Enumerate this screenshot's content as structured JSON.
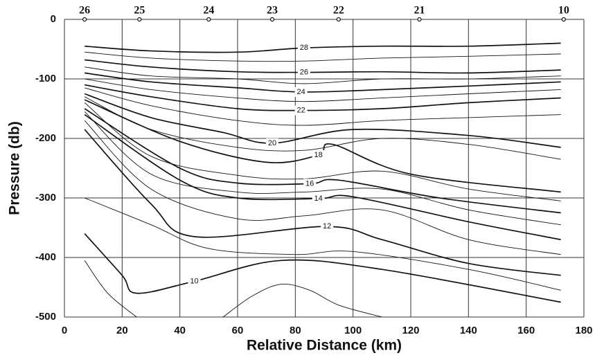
{
  "chart_data": {
    "type": "contour",
    "xlabel": "Relative Distance (km)",
    "ylabel": "Pressure (db)",
    "xlim": [
      0,
      180
    ],
    "ylim": [
      -500,
      0
    ],
    "xticks": [
      0,
      20,
      40,
      60,
      80,
      100,
      120,
      140,
      160,
      180
    ],
    "yticks": [
      0,
      -100,
      -200,
      -300,
      -400,
      -500
    ],
    "grid": true,
    "color": "#111111",
    "stations": {
      "labels": [
        "26",
        "25",
        "24",
        "23",
        "22",
        "21",
        "10"
      ],
      "x": [
        7,
        26,
        50,
        72,
        95,
        123,
        173
      ]
    },
    "contours": [
      {
        "level": 28,
        "x": [
          7,
          30,
          60,
          83,
          110,
          140,
          172
        ],
        "y": [
          -45,
          -53,
          -55,
          -48,
          -45,
          -45,
          -40
        ]
      },
      {
        "level": null,
        "x": [
          7,
          30,
          60,
          83,
          110,
          140,
          172
        ],
        "y": [
          -55,
          -65,
          -70,
          -70,
          -65,
          -62,
          -58
        ]
      },
      {
        "level": 26,
        "x": [
          7,
          30,
          60,
          83,
          110,
          140,
          172
        ],
        "y": [
          -68,
          -80,
          -88,
          -89,
          -88,
          -90,
          -85
        ]
      },
      {
        "level": null,
        "x": [
          7,
          30,
          60,
          83,
          110,
          140,
          172
        ],
        "y": [
          -80,
          -95,
          -100,
          -108,
          -100,
          -100,
          -95
        ]
      },
      {
        "level": 24,
        "x": [
          7,
          30,
          60,
          82,
          110,
          140,
          172
        ],
        "y": [
          -90,
          -105,
          -115,
          -122,
          -118,
          -112,
          -105
        ]
      },
      {
        "level": null,
        "x": [
          7,
          30,
          60,
          83,
          110,
          140,
          172
        ],
        "y": [
          -100,
          -118,
          -132,
          -138,
          -132,
          -125,
          -118
        ]
      },
      {
        "level": 22,
        "x": [
          7,
          30,
          60,
          82,
          110,
          140,
          172
        ],
        "y": [
          -110,
          -130,
          -150,
          -153,
          -150,
          -140,
          -132
        ]
      },
      {
        "level": null,
        "x": [
          7,
          30,
          60,
          83,
          110,
          140,
          172
        ],
        "y": [
          -115,
          -145,
          -170,
          -178,
          -170,
          -165,
          -160
        ]
      },
      {
        "level": 20,
        "x": [
          7,
          30,
          55,
          72,
          100,
          140,
          172
        ],
        "y": [
          -125,
          -165,
          -190,
          -208,
          -185,
          -195,
          -215
        ]
      },
      {
        "level": null,
        "x": [
          7,
          30,
          60,
          83,
          110,
          140,
          172
        ],
        "y": [
          -130,
          -185,
          -215,
          -220,
          -200,
          -210,
          -235
        ]
      },
      {
        "level": 18,
        "x": [
          7,
          40,
          70,
          88,
          93,
          120,
          172
        ],
        "y": [
          -135,
          -205,
          -240,
          -228,
          -210,
          -260,
          -290
        ]
      },
      {
        "level": null,
        "x": [
          7,
          30,
          60,
          83,
          110,
          140,
          172
        ],
        "y": [
          -140,
          -230,
          -262,
          -268,
          -255,
          -285,
          -305
        ]
      },
      {
        "level": 16,
        "x": [
          7,
          40,
          60,
          85,
          95,
          130,
          172
        ],
        "y": [
          -150,
          -250,
          -275,
          -276,
          -270,
          -300,
          -325
        ]
      },
      {
        "level": null,
        "x": [
          7,
          30,
          60,
          83,
          110,
          140,
          172
        ],
        "y": [
          -155,
          -260,
          -290,
          -290,
          -285,
          -320,
          -345
        ]
      },
      {
        "level": 14,
        "x": [
          7,
          40,
          60,
          88,
          100,
          140,
          172
        ],
        "y": [
          -160,
          -270,
          -300,
          -301,
          -298,
          -340,
          -370
        ]
      },
      {
        "level": null,
        "x": [
          7,
          30,
          60,
          83,
          110,
          140,
          172
        ],
        "y": [
          -170,
          -285,
          -335,
          -330,
          -320,
          -370,
          -395
        ]
      },
      {
        "level": 12,
        "x": [
          7,
          30,
          45,
          91,
          110,
          140,
          172
        ],
        "y": [
          -185,
          -310,
          -365,
          -348,
          -370,
          -410,
          -430
        ]
      },
      {
        "level": null,
        "x": [
          7,
          30,
          50,
          80,
          100,
          140,
          172
        ],
        "y": [
          -300,
          -345,
          -385,
          -395,
          -390,
          -420,
          -455
        ]
      },
      {
        "level": 10,
        "x": [
          7,
          20,
          25,
          45,
          75,
          110,
          172
        ],
        "y": [
          -360,
          -430,
          -460,
          -440,
          -405,
          -420,
          -475
        ]
      },
      {
        "level": null,
        "x": [
          7,
          15,
          25
        ],
        "y": [
          -405,
          -460,
          -500
        ]
      },
      {
        "level": null,
        "x": [
          55,
          65,
          75,
          85,
          95,
          110
        ],
        "y": [
          -500,
          -465,
          -445,
          -455,
          -480,
          -500
        ]
      }
    ]
  }
}
